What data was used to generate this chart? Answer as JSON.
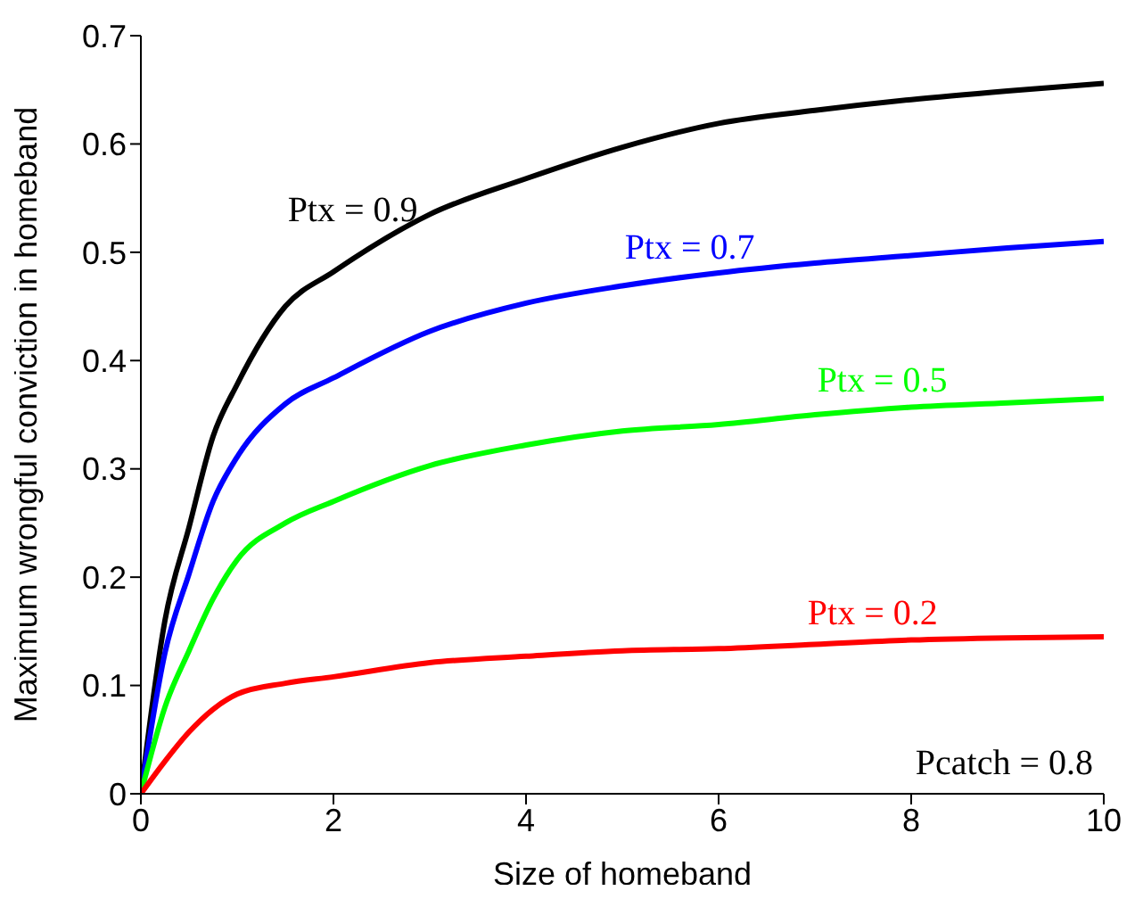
{
  "chart_data": {
    "type": "line",
    "xlabel": "Size of homeband",
    "ylabel": "Maximum wrongful conviction in homeband",
    "x": [
      0,
      0.25,
      0.5,
      0.75,
      1,
      1.5,
      2,
      3,
      4,
      5,
      6,
      7,
      8,
      9,
      10
    ],
    "series": [
      {
        "name": "Ptx = 0.9",
        "color": "#000000",
        "values": [
          0,
          0.16,
          0.246,
          0.33,
          0.378,
          0.45,
          0.482,
          0.535,
          0.568,
          0.597,
          0.619,
          0.631,
          0.641,
          0.649,
          0.656
        ]
      },
      {
        "name": "Ptx = 0.7",
        "color": "#0000ff",
        "values": [
          0,
          0.13,
          0.203,
          0.27,
          0.311,
          0.36,
          0.384,
          0.427,
          0.453,
          0.469,
          0.481,
          0.49,
          0.497,
          0.504,
          0.51
        ]
      },
      {
        "name": "Ptx = 0.5",
        "color": "#00ff00",
        "values": [
          0,
          0.08,
          0.132,
          0.18,
          0.216,
          0.25,
          0.27,
          0.303,
          0.322,
          0.335,
          0.341,
          0.35,
          0.357,
          0.361,
          0.365
        ]
      },
      {
        "name": "Ptx = 0.2",
        "color": "#ff0000",
        "values": [
          0,
          0.03,
          0.057,
          0.078,
          0.092,
          0.102,
          0.108,
          0.121,
          0.127,
          0.132,
          0.134,
          0.138,
          0.142,
          0.144,
          0.145
        ]
      }
    ],
    "annotations": [
      "Pcatch = 0.8"
    ],
    "xlim": [
      0,
      10
    ],
    "xticks": [
      0,
      2,
      4,
      6,
      8,
      10
    ],
    "ylim": [
      0,
      0.7
    ],
    "yticks": [
      0,
      0.1,
      0.2,
      0.3,
      0.4,
      0.5,
      0.6,
      0.7
    ],
    "grid": false,
    "legend": false,
    "marker": "none",
    "line_style": "solid"
  }
}
